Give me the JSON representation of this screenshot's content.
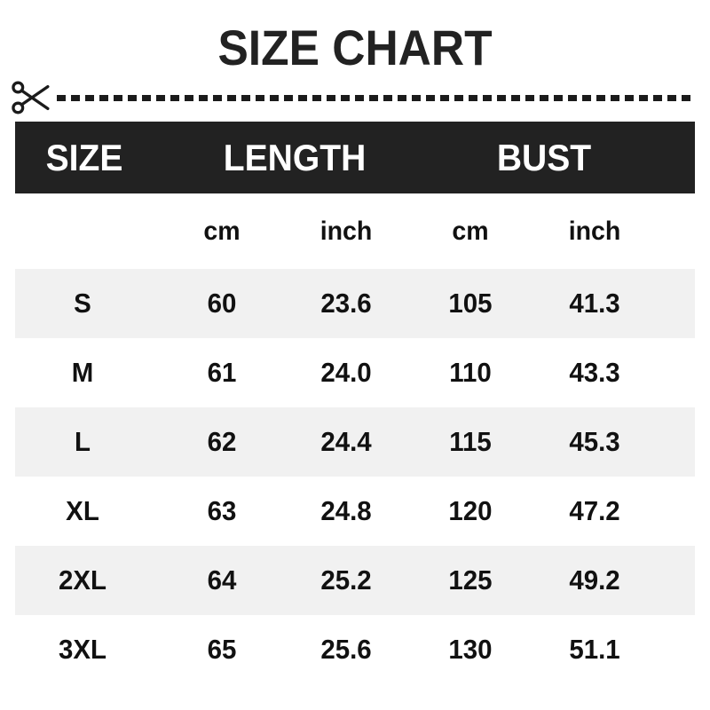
{
  "page": {
    "title": "SIZE CHART"
  },
  "cut_line": {
    "icon": "scissors-icon",
    "style": "dashed"
  },
  "colors": {
    "header_bg": "#222222",
    "header_text": "#ffffff",
    "alt_row_bg": "#f1f1f1",
    "text": "#111111",
    "background": "#ffffff"
  },
  "size_chart": {
    "header_groups": [
      "SIZE",
      "LENGTH",
      "BUST"
    ],
    "units": [
      "",
      "cm",
      "inch",
      "cm",
      "inch"
    ],
    "rows": [
      [
        "S",
        "60",
        "23.6",
        "105",
        "41.3"
      ],
      [
        "M",
        "61",
        "24.0",
        "110",
        "43.3"
      ],
      [
        "L",
        "62",
        "24.4",
        "115",
        "45.3"
      ],
      [
        "XL",
        "63",
        "24.8",
        "120",
        "47.2"
      ],
      [
        "2XL",
        "64",
        "25.2",
        "125",
        "49.2"
      ],
      [
        "3XL",
        "65",
        "25.6",
        "130",
        "51.1"
      ]
    ]
  },
  "chart_data": {
    "type": "table",
    "title": "SIZE CHART",
    "column_groups": [
      "SIZE",
      "LENGTH",
      "BUST"
    ],
    "columns": [
      "SIZE",
      "LENGTH (cm)",
      "LENGTH (inch)",
      "BUST (cm)",
      "BUST (inch)"
    ],
    "rows": [
      [
        "S",
        "60",
        "23.6",
        "105",
        "41.3"
      ],
      [
        "M",
        "61",
        "24.0",
        "110",
        "43.3"
      ],
      [
        "L",
        "62",
        "24.4",
        "115",
        "45.3"
      ],
      [
        "XL",
        "63",
        "24.8",
        "120",
        "47.2"
      ],
      [
        "2XL",
        "64",
        "25.2",
        "125",
        "49.2"
      ],
      [
        "3XL",
        "65",
        "25.6",
        "130",
        "51.1"
      ]
    ],
    "notes": "Alternating gray rows: S, L, 2XL; white rows: M, XL, 3XL. Grid off, no borders between columns."
  }
}
